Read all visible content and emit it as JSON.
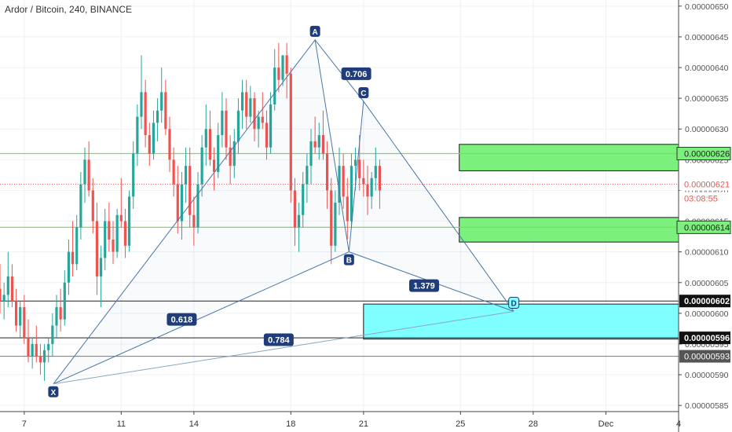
{
  "header": {
    "title": "Ardor / Bitcoin, 240, BINANCE"
  },
  "colors": {
    "up": "#26a69a",
    "down": "#ef5350",
    "pattern_line": "#4a76a8",
    "pattern_label_bg": "#1f3d7a",
    "green_zone": "#7cf07c",
    "cyan_zone": "#7fffff",
    "green_line": "#7cdc5c",
    "red_dotted": "#ef5350",
    "axis_text": "#555555",
    "grid": "#eef2f6"
  },
  "chart_data": {
    "type": "candlestick",
    "ylim": [
      5.84e-06,
      6.51e-06
    ],
    "y_ticks": [
      "0.00000650",
      "0.00000645",
      "0.00000640",
      "0.00000635",
      "0.00000630",
      "0.00000625",
      "0.00000620",
      "0.00000615",
      "0.00000610",
      "0.00000605",
      "0.00000600",
      "0.00000595",
      "0.00000590",
      "0.00000585"
    ],
    "y_tick_values": [
      6.5,
      6.45,
      6.4,
      6.35,
      6.3,
      6.25,
      6.2,
      6.15,
      6.1,
      6.05,
      6.0,
      5.95,
      5.9,
      5.85
    ],
    "x_ticks": [
      "7",
      "11",
      "14",
      "18",
      "21",
      "25",
      "28",
      "Dec",
      "4"
    ],
    "x_tick_days": [
      7,
      11,
      14,
      18,
      21,
      25,
      28,
      31,
      34
    ],
    "x_range_days": [
      6.0,
      34.0
    ],
    "candles_per_day": 6,
    "first_candle_day": 6.0,
    "candles": [
      [
        6.04,
        6.08,
        6.0,
        6.02
      ],
      [
        6.02,
        6.05,
        5.99,
        6.03
      ],
      [
        6.03,
        6.1,
        6.01,
        6.06
      ],
      [
        6.06,
        6.08,
        6.01,
        6.02
      ],
      [
        6.02,
        6.04,
        5.97,
        5.98
      ],
      [
        5.98,
        6.02,
        5.96,
        6.01
      ],
      [
        6.01,
        6.03,
        5.95,
        5.96
      ],
      [
        5.96,
        5.99,
        5.92,
        5.93
      ],
      [
        5.93,
        5.96,
        5.91,
        5.95
      ],
      [
        5.95,
        5.98,
        5.92,
        5.93
      ],
      [
        5.93,
        5.95,
        5.9,
        5.92
      ],
      [
        5.92,
        5.95,
        5.89,
        5.94
      ],
      [
        5.94,
        5.96,
        5.92,
        5.95
      ],
      [
        5.95,
        6.0,
        5.93,
        5.98
      ],
      [
        5.98,
        6.03,
        5.96,
        6.01
      ],
      [
        6.01,
        6.04,
        5.97,
        5.99
      ],
      [
        5.99,
        6.07,
        5.98,
        6.05
      ],
      [
        6.05,
        6.12,
        6.03,
        6.1
      ],
      [
        6.1,
        6.15,
        6.06,
        6.08
      ],
      [
        6.08,
        6.16,
        6.07,
        6.14
      ],
      [
        6.14,
        6.23,
        6.12,
        6.21
      ],
      [
        6.21,
        6.27,
        6.18,
        6.25
      ],
      [
        6.25,
        6.28,
        6.19,
        6.2
      ],
      [
        6.2,
        6.22,
        6.13,
        6.15
      ],
      [
        6.15,
        6.18,
        6.03,
        6.06
      ],
      [
        6.06,
        6.11,
        6.01,
        6.09
      ],
      [
        6.09,
        6.17,
        6.07,
        6.15
      ],
      [
        6.15,
        6.18,
        6.1,
        6.12
      ],
      [
        6.12,
        6.15,
        6.08,
        6.1
      ],
      [
        6.1,
        6.17,
        6.09,
        6.16
      ],
      [
        6.16,
        6.22,
        6.14,
        6.15
      ],
      [
        6.15,
        6.17,
        6.09,
        6.11
      ],
      [
        6.11,
        6.2,
        6.1,
        6.19
      ],
      [
        6.19,
        6.28,
        6.17,
        6.26
      ],
      [
        6.26,
        6.34,
        6.24,
        6.32
      ],
      [
        6.32,
        6.42,
        6.3,
        6.36
      ],
      [
        6.36,
        6.38,
        6.27,
        6.29
      ],
      [
        6.29,
        6.31,
        6.24,
        6.26
      ],
      [
        6.26,
        6.33,
        6.25,
        6.31
      ],
      [
        6.31,
        6.35,
        6.28,
        6.33
      ],
      [
        6.33,
        6.4,
        6.31,
        6.36
      ],
      [
        6.36,
        6.38,
        6.29,
        6.3
      ],
      [
        6.3,
        6.32,
        6.23,
        6.25
      ],
      [
        6.25,
        6.27,
        6.19,
        6.21
      ],
      [
        6.21,
        6.24,
        6.13,
        6.15
      ],
      [
        6.15,
        6.23,
        6.12,
        6.21
      ],
      [
        6.21,
        6.27,
        6.18,
        6.24
      ],
      [
        6.24,
        6.27,
        6.14,
        6.16
      ],
      [
        6.16,
        6.19,
        6.11,
        6.14
      ],
      [
        6.14,
        6.23,
        6.13,
        6.21
      ],
      [
        6.21,
        6.29,
        6.19,
        6.27
      ],
      [
        6.27,
        6.34,
        6.24,
        6.3
      ],
      [
        6.3,
        6.33,
        6.24,
        6.25
      ],
      [
        6.25,
        6.27,
        6.2,
        6.23
      ],
      [
        6.23,
        6.31,
        6.22,
        6.29
      ],
      [
        6.29,
        6.36,
        6.27,
        6.33
      ],
      [
        6.33,
        6.35,
        6.25,
        6.27
      ],
      [
        6.27,
        6.29,
        6.21,
        6.24
      ],
      [
        6.24,
        6.3,
        6.22,
        6.28
      ],
      [
        6.28,
        6.35,
        6.26,
        6.33
      ],
      [
        6.33,
        6.38,
        6.3,
        6.36
      ],
      [
        6.36,
        6.38,
        6.3,
        6.32
      ],
      [
        6.32,
        6.37,
        6.31,
        6.35
      ],
      [
        6.35,
        6.36,
        6.28,
        6.3
      ],
      [
        6.3,
        6.33,
        6.27,
        6.32
      ],
      [
        6.32,
        6.36,
        6.3,
        6.31
      ],
      [
        6.31,
        6.33,
        6.25,
        6.27
      ],
      [
        6.27,
        6.36,
        6.26,
        6.34
      ],
      [
        6.34,
        6.43,
        6.33,
        6.4
      ],
      [
        6.4,
        6.44,
        6.36,
        6.38
      ],
      [
        6.38,
        6.42,
        6.37,
        6.42
      ],
      [
        6.42,
        6.44,
        6.35,
        6.39
      ],
      [
        6.39,
        6.4,
        6.18,
        6.2
      ],
      [
        6.2,
        6.22,
        6.11,
        6.14
      ],
      [
        6.14,
        6.18,
        6.1,
        6.16
      ],
      [
        6.16,
        6.23,
        6.14,
        6.21
      ],
      [
        6.21,
        6.26,
        6.18,
        6.24
      ],
      [
        6.24,
        6.3,
        6.21,
        6.28
      ],
      [
        6.28,
        6.32,
        6.26,
        6.27
      ],
      [
        6.27,
        6.31,
        6.25,
        6.29
      ],
      [
        6.29,
        6.33,
        6.25,
        6.26
      ],
      [
        6.26,
        6.28,
        6.17,
        6.2
      ],
      [
        6.2,
        6.22,
        6.08,
        6.11
      ],
      [
        6.11,
        6.2,
        6.1,
        6.18
      ],
      [
        6.18,
        6.27,
        6.16,
        6.24
      ],
      [
        6.24,
        6.26,
        6.17,
        6.19
      ],
      [
        6.19,
        6.22,
        6.12,
        6.15
      ],
      [
        6.15,
        6.26,
        6.14,
        6.24
      ],
      [
        6.24,
        6.27,
        6.2,
        6.25
      ],
      [
        6.25,
        6.29,
        6.2,
        6.22
      ],
      [
        6.22,
        6.25,
        6.19,
        6.21
      ],
      [
        6.21,
        6.24,
        6.16,
        6.19
      ],
      [
        6.19,
        6.23,
        6.17,
        6.22
      ],
      [
        6.22,
        6.27,
        6.2,
        6.24
      ],
      [
        6.24,
        6.25,
        6.17,
        6.2
      ]
    ],
    "pattern_points": [
      {
        "label": "X",
        "day": 8.2,
        "price": 5.885
      },
      {
        "label": "A",
        "day": 19.0,
        "price": 6.445
      },
      {
        "label": "B",
        "day": 20.4,
        "price": 6.1
      },
      {
        "label": "C",
        "day": 21.0,
        "price": 6.345
      },
      {
        "label": "D",
        "day": 27.2,
        "price": 6.003
      }
    ],
    "ratio_labels": [
      {
        "text": "0.706",
        "day": 20.7,
        "price": 6.39
      },
      {
        "text": "0.618",
        "day": 13.5,
        "price": 5.99
      },
      {
        "text": "1.379",
        "day": 23.5,
        "price": 6.045
      },
      {
        "text": "0.784",
        "day": 17.5,
        "price": 5.957
      }
    ],
    "zones": [
      {
        "name": "upper-green-zone",
        "day_start": 24.95,
        "day_end": 34.0,
        "price_top": 6.275,
        "price_bottom": 6.232,
        "color": "green"
      },
      {
        "name": "lower-green-zone",
        "day_start": 24.95,
        "day_end": 34.0,
        "price_top": 6.156,
        "price_bottom": 6.116,
        "color": "green"
      },
      {
        "name": "cyan-prz-zone",
        "day_start": 21.0,
        "day_end": 34.0,
        "price_top": 6.015,
        "price_bottom": 5.958,
        "color": "cyan"
      }
    ],
    "h_lines": [
      {
        "name": "green-line-626",
        "price": 6.26,
        "style": "green"
      },
      {
        "name": "green-line-614",
        "price": 6.14,
        "style": "green"
      },
      {
        "name": "black-line-602",
        "price": 6.02,
        "style": "black"
      },
      {
        "name": "black-line-596",
        "price": 5.96,
        "style": "black"
      },
      {
        "name": "grey-line-593",
        "price": 5.93,
        "style": "grey"
      },
      {
        "name": "red-dotted-621",
        "price": 6.21,
        "style": "red"
      }
    ],
    "price_labels": [
      {
        "text": "0.00000626",
        "price": 6.26,
        "style": "green"
      },
      {
        "text": "0.00000621",
        "price": 6.21,
        "style": "red"
      },
      {
        "text": "03:08:55",
        "price": 6.187,
        "style": "red"
      },
      {
        "text": "0.00000614",
        "price": 6.14,
        "style": "green"
      },
      {
        "text": "0.00000602",
        "price": 6.02,
        "style": "black"
      },
      {
        "text": "0.00000596",
        "price": 5.96,
        "style": "black"
      },
      {
        "text": "0.00000593",
        "price": 5.93,
        "style": "grey"
      }
    ]
  }
}
